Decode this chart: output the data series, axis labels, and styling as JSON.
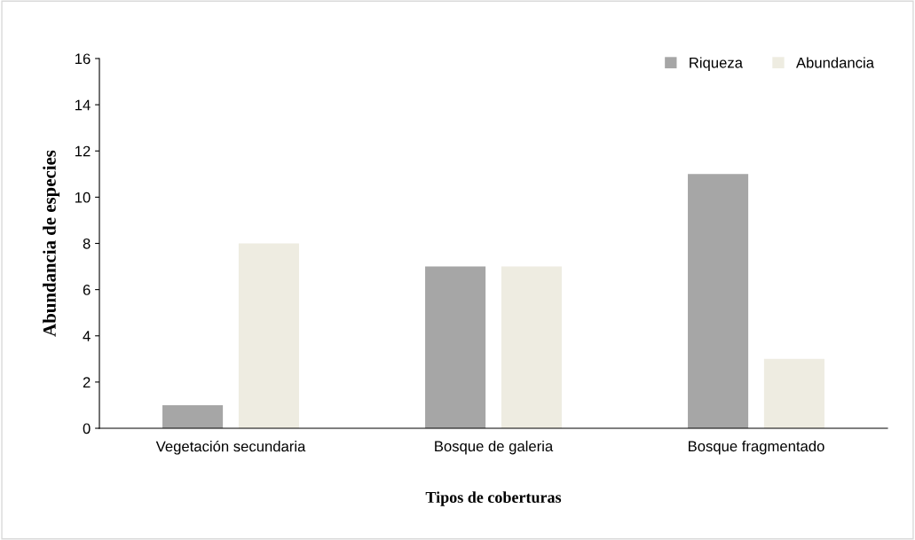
{
  "chart_data": {
    "type": "bar",
    "xlabel": "Tipos de coberturas",
    "ylabel": "Abundancia de especies",
    "categories": [
      "Vegetación secundaria",
      "Bosque de galeria",
      "Bosque fragmentado"
    ],
    "series": [
      {
        "name": "Riqueza",
        "color": "#a6a6a6",
        "values": [
          1,
          7,
          11
        ]
      },
      {
        "name": "Abundancia",
        "color": "#eeece1",
        "values": [
          8,
          7,
          3
        ]
      }
    ],
    "ylim": [
      0,
      16
    ],
    "yticks": [
      0,
      2,
      4,
      6,
      8,
      10,
      12,
      14,
      16
    ],
    "grid": false,
    "legend": "top right"
  }
}
